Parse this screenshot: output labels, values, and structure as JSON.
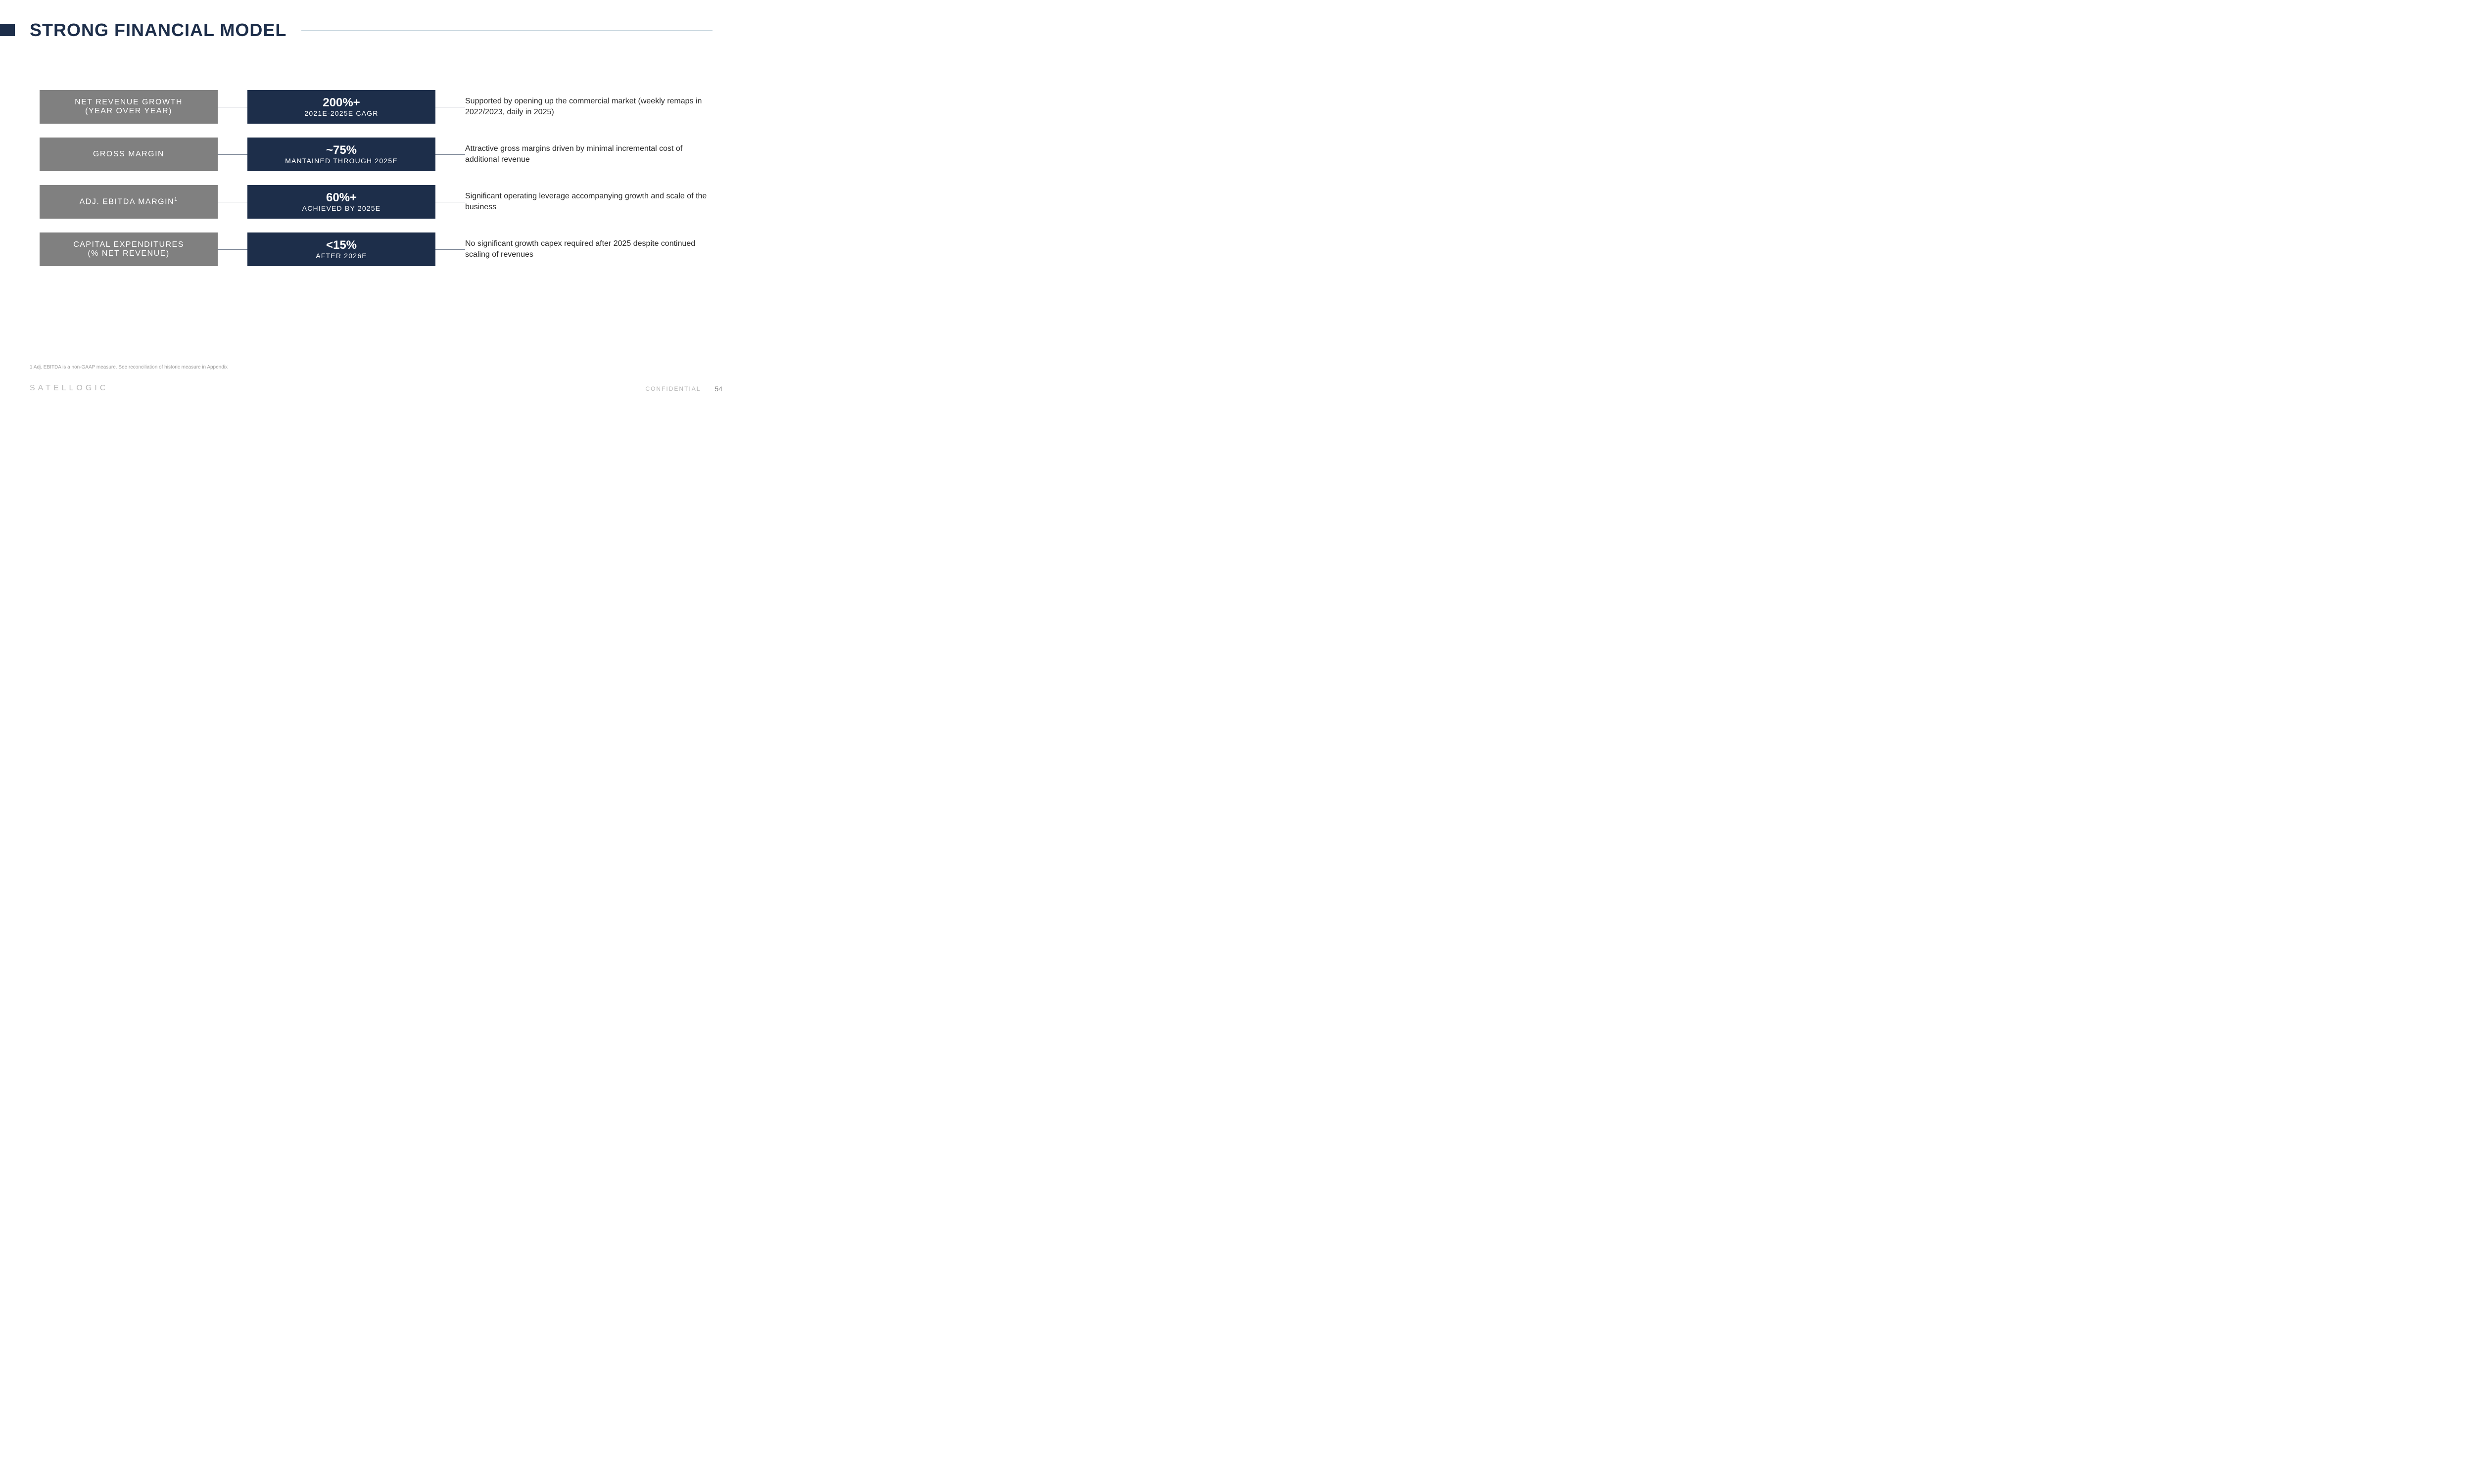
{
  "title": "STRONG FINANCIAL MODEL",
  "colors": {
    "navy": "#1d2e4a",
    "gray": "#808080",
    "background": "#ffffff",
    "rule": "#c5d4dc",
    "footnote_text": "#a0a0a0",
    "desc_text": "#2a2a2a",
    "footer_text": "#b8b8b8"
  },
  "metrics": [
    {
      "label_line1": "NET REVENUE GROWTH",
      "label_line2": "(YEAR OVER YEAR)",
      "value_main": "200%+",
      "value_sub": "2021E-2025E CAGR",
      "desc": "Supported by opening up the commercial market (weekly remaps in 2022/2023, daily in 2025)"
    },
    {
      "label_line1": "GROSS MARGIN",
      "label_line2": "",
      "value_main": "~75%",
      "value_sub": "MANTAINED THROUGH 2025E",
      "desc": "Attractive gross margins driven by minimal incremental cost of additional revenue"
    },
    {
      "label_line1": "ADJ. EBITDA MARGIN",
      "label_sup": "1",
      "label_line2": "",
      "value_main": "60%+",
      "value_sub": "ACHIEVED BY 2025E",
      "desc": "Significant operating leverage accompanying growth and scale of the business"
    },
    {
      "label_line1": "CAPITAL EXPENDITURES",
      "label_line2": "(% NET REVENUE)",
      "value_main": "<15%",
      "value_sub": "AFTER 2026E",
      "desc": "No significant growth capex required after 2025 despite continued scaling of revenues"
    }
  ],
  "footnote": "1 Adj. EBITDA is a non-GAAP measure. See reconciliation of historic measure in Appendix",
  "footer": {
    "logo": "SATELLOGIC",
    "confidential": "CONFIDENTIAL",
    "page_num": "54"
  }
}
